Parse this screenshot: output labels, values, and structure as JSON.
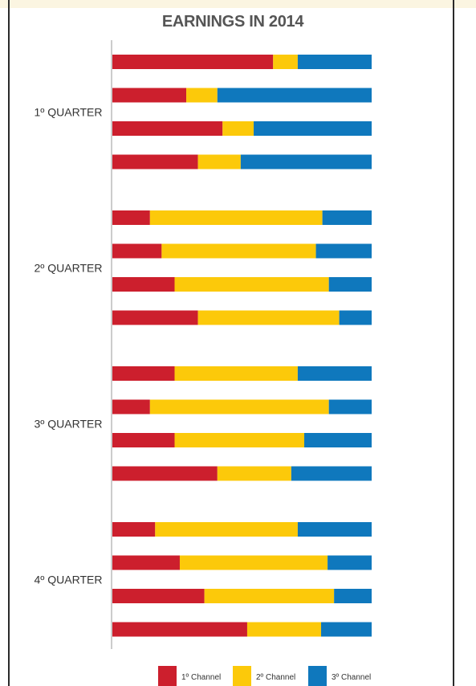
{
  "chart_data": {
    "type": "bar",
    "orientation": "horizontal",
    "stacking": "percent",
    "title": "EARNINGS IN 2014",
    "xlabel": "",
    "ylabel": "",
    "xlim": [
      0,
      100
    ],
    "grid": false,
    "legend_position": "bottom-center",
    "groups": [
      "1º QUARTER",
      "2º QUARTER",
      "3º QUARTER",
      "4º QUARTER"
    ],
    "bars_per_group": 4,
    "series": [
      {
        "name": "1º Channel",
        "color": "#cc1f2d",
        "values": [
          62,
          28.5,
          42.5,
          33,
          14.5,
          19,
          24,
          33,
          24,
          14.5,
          24,
          40.5,
          16.5,
          26,
          35.5,
          52
        ]
      },
      {
        "name": "2º Channel",
        "color": "#fcc90a",
        "values": [
          9.5,
          12,
          12,
          16.5,
          66.5,
          59.5,
          59.5,
          54.5,
          47.5,
          69,
          50,
          28.5,
          55,
          57,
          50,
          28.5
        ]
      },
      {
        "name": "3º Channel",
        "color": "#0f78bd",
        "values": [
          28.5,
          59.5,
          45.5,
          50.5,
          19,
          21.5,
          16.5,
          12.5,
          28.5,
          16.5,
          26,
          31,
          28.5,
          17,
          14.5,
          19.5
        ]
      }
    ]
  }
}
